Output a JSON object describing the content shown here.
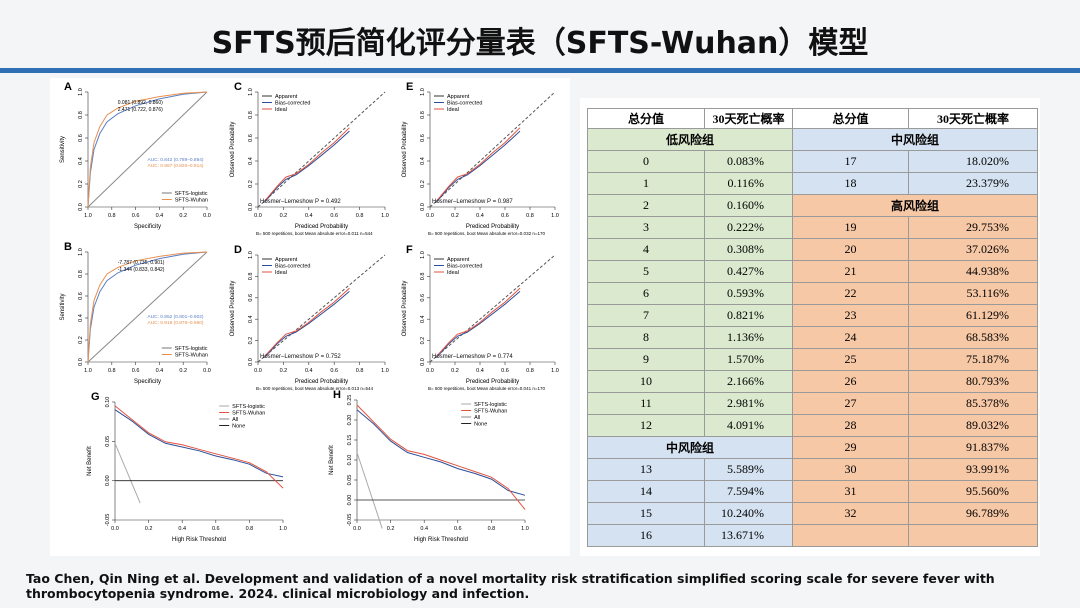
{
  "title": "SFTS预后简化评分量表（SFTS-Wuhan）模型",
  "citation": "Tao Chen, Qin Ning et al. Development and validation of a novel mortality risk stratification simplified scoring scale for severe fever with thrombocytopenia syndrome. 2024. clinical microbiology and infection.",
  "figure": {
    "panels": [
      {
        "kind": "roc",
        "letter": "A",
        "ylabel": "Sensitivity",
        "xlabel": "Specificity",
        "xticks": [
          "1.0",
          "0.8",
          "0.6",
          "0.4",
          "0.2",
          "0.0"
        ],
        "yticks": [
          "0.0",
          "0.2",
          "0.4",
          "0.6",
          "0.8",
          "1.0"
        ],
        "points": [
          "0.081 (0.892, 0.860)",
          "2.471 (0.722, 0.876)"
        ],
        "notes": [
          "AUC: 0.842 (0.789–0.894)",
          "AUC: 0.867 (0.820–0.914)"
        ],
        "legend": [
          "SFTS-logistic",
          "SFTS-Wuhan"
        ]
      },
      {
        "kind": "calib",
        "letter": "C",
        "ylabel": "Observed Probability",
        "xlabel": "Prediced Probability",
        "xticks": [
          "0.0",
          "0.2",
          "0.4",
          "0.6",
          "0.8",
          "1.0"
        ],
        "yticks": [
          "0.0",
          "0.2",
          "0.4",
          "0.6",
          "0.8",
          "1.0"
        ],
        "legend": [
          "Apparent",
          "Bias-corrected",
          "Ideal"
        ],
        "notes": [
          "Hosmer–Lemeshow  P = 0.492"
        ],
        "footer": "B= 500 repetitions, boot   Mean absolute error=0.011 n=544"
      },
      {
        "kind": "calib",
        "letter": "E",
        "ylabel": "Observed Probability",
        "xlabel": "Prediced Probability",
        "xticks": [
          "0.0",
          "0.2",
          "0.4",
          "0.6",
          "0.8",
          "1.0"
        ],
        "yticks": [
          "0.0",
          "0.2",
          "0.4",
          "0.6",
          "0.8",
          "1.0"
        ],
        "legend": [
          "Apparent",
          "Bias-corrected",
          "Ideal"
        ],
        "notes": [
          "Hosmer–Lemeshow  P = 0.987"
        ],
        "footer": "B= 500 repetitions, boot   Mean absolute error=0.032 n=170"
      },
      {
        "kind": "roc",
        "letter": "B",
        "ylabel": "Sensitivity",
        "xlabel": "Specificity",
        "xticks": [
          "1.0",
          "0.8",
          "0.6",
          "0.4",
          "0.2",
          "0.0"
        ],
        "yticks": [
          "0.0",
          "0.2",
          "0.4",
          "0.6",
          "0.8",
          "1.0"
        ],
        "points": [
          "-7.787 (0.735, 0.901)",
          "-1.344 (0.833, 0.842)"
        ],
        "notes": [
          "AUC: 0.852 (0.801–0.902)",
          "AUC: 0.918 (0.876–0.960)"
        ],
        "legend": [
          "SFTS-logistic",
          "SFTS-Wuhan"
        ]
      },
      {
        "kind": "calib",
        "letter": "D",
        "ylabel": "Observed Probability",
        "xlabel": "Prediced Probability",
        "xticks": [
          "0.0",
          "0.2",
          "0.4",
          "0.6",
          "0.8",
          "1.0"
        ],
        "yticks": [
          "0.0",
          "0.2",
          "0.4",
          "0.6",
          "0.8",
          "1.0"
        ],
        "legend": [
          "Apparent",
          "Bias-corrected",
          "Ideal"
        ],
        "notes": [
          "Hosmer–Lemeshow  P = 0.752"
        ],
        "footer": "B= 500 repetitions, boot   Mean absolute error=0.013 n=544"
      },
      {
        "kind": "calib",
        "letter": "F",
        "ylabel": "Observed Probability",
        "xlabel": "Prediced Probability",
        "xticks": [
          "0.0",
          "0.2",
          "0.4",
          "0.6",
          "0.8",
          "1.0"
        ],
        "yticks": [
          "0.0",
          "0.2",
          "0.4",
          "0.6",
          "0.8",
          "1.0"
        ],
        "legend": [
          "Apparent",
          "Bias-corrected",
          "Ideal"
        ],
        "notes": [
          "Hosmer–Lemeshow  P = 0.774"
        ],
        "footer": "B= 500 repetitions, boot   Mean absolute error=0.041 n=170"
      },
      {
        "kind": "dca",
        "letter": "G",
        "ylabel": "Net Benefit",
        "xlabel": "High Risk Threshold",
        "xticks": [
          "0.0",
          "0.2",
          "0.4",
          "0.6",
          "0.8",
          "1.0"
        ],
        "yticks": [
          "-0.05",
          "0.00",
          "0.05",
          "0.10"
        ],
        "legend": [
          "SFTS-logistic",
          "SFTS-Wuhan",
          "All",
          "None"
        ]
      },
      {
        "kind": "dca",
        "letter": "H",
        "ylabel": "Net Benefit",
        "xlabel": "High Risk Threshold",
        "xticks": [
          "0.0",
          "0.2",
          "0.4",
          "0.6",
          "0.8",
          "1.0"
        ],
        "yticks": [
          "-0.05",
          "0.00",
          "0.05",
          "0.10",
          "0.15",
          "0.20",
          "0.25"
        ],
        "legend": [
          "SFTS-logistic",
          "SFTS-Wuhan",
          "All",
          "None"
        ]
      }
    ]
  },
  "table": {
    "header": [
      "总分值",
      "30天死亡概率",
      "总分值",
      "30天死亡概率"
    ],
    "group_colors": {
      "低风险组": "#dbeacf",
      "中风险组": "#d5e2f1",
      "高风险组": "#f6c8a6"
    },
    "rows": [
      {
        "left": {
          "group": "低风险组"
        },
        "right": {
          "group": "中风险组"
        }
      },
      {
        "left": [
          "0",
          "0.083%"
        ],
        "right": [
          "17",
          "18.020%"
        ]
      },
      {
        "left": [
          "1",
          "0.116%"
        ],
        "right": [
          "18",
          "23.379%"
        ]
      },
      {
        "left": [
          "2",
          "0.160%"
        ],
        "right": {
          "group": "高风险组"
        }
      },
      {
        "left": [
          "3",
          "0.222%"
        ],
        "right": [
          "19",
          "29.753%"
        ]
      },
      {
        "left": [
          "4",
          "0.308%"
        ],
        "right": [
          "20",
          "37.026%"
        ]
      },
      {
        "left": [
          "5",
          "0.427%"
        ],
        "right": [
          "21",
          "44.938%"
        ]
      },
      {
        "left": [
          "6",
          "0.593%"
        ],
        "right": [
          "22",
          "53.116%"
        ]
      },
      {
        "left": [
          "7",
          "0.821%"
        ],
        "right": [
          "23",
          "61.129%"
        ]
      },
      {
        "left": [
          "8",
          "1.136%"
        ],
        "right": [
          "24",
          "68.583%"
        ]
      },
      {
        "left": [
          "9",
          "1.570%"
        ],
        "right": [
          "25",
          "75.187%"
        ]
      },
      {
        "left": [
          "10",
          "2.166%"
        ],
        "right": [
          "26",
          "80.793%"
        ]
      },
      {
        "left": [
          "11",
          "2.981%"
        ],
        "right": [
          "27",
          "85.378%"
        ]
      },
      {
        "left": [
          "12",
          "4.091%"
        ],
        "right": [
          "28",
          "89.032%"
        ]
      },
      {
        "left": {
          "group": "中风险组"
        },
        "right": [
          "29",
          "91.837%"
        ]
      },
      {
        "left": [
          "13",
          "5.589%"
        ],
        "right": [
          "30",
          "93.991%"
        ]
      },
      {
        "left": [
          "14",
          "7.594%"
        ],
        "right": [
          "31",
          "95.560%"
        ]
      },
      {
        "left": [
          "15",
          "10.240%"
        ],
        "right": [
          "32",
          "96.789%"
        ]
      },
      {
        "left": [
          "16",
          "13.671%"
        ],
        "right": null
      }
    ]
  }
}
